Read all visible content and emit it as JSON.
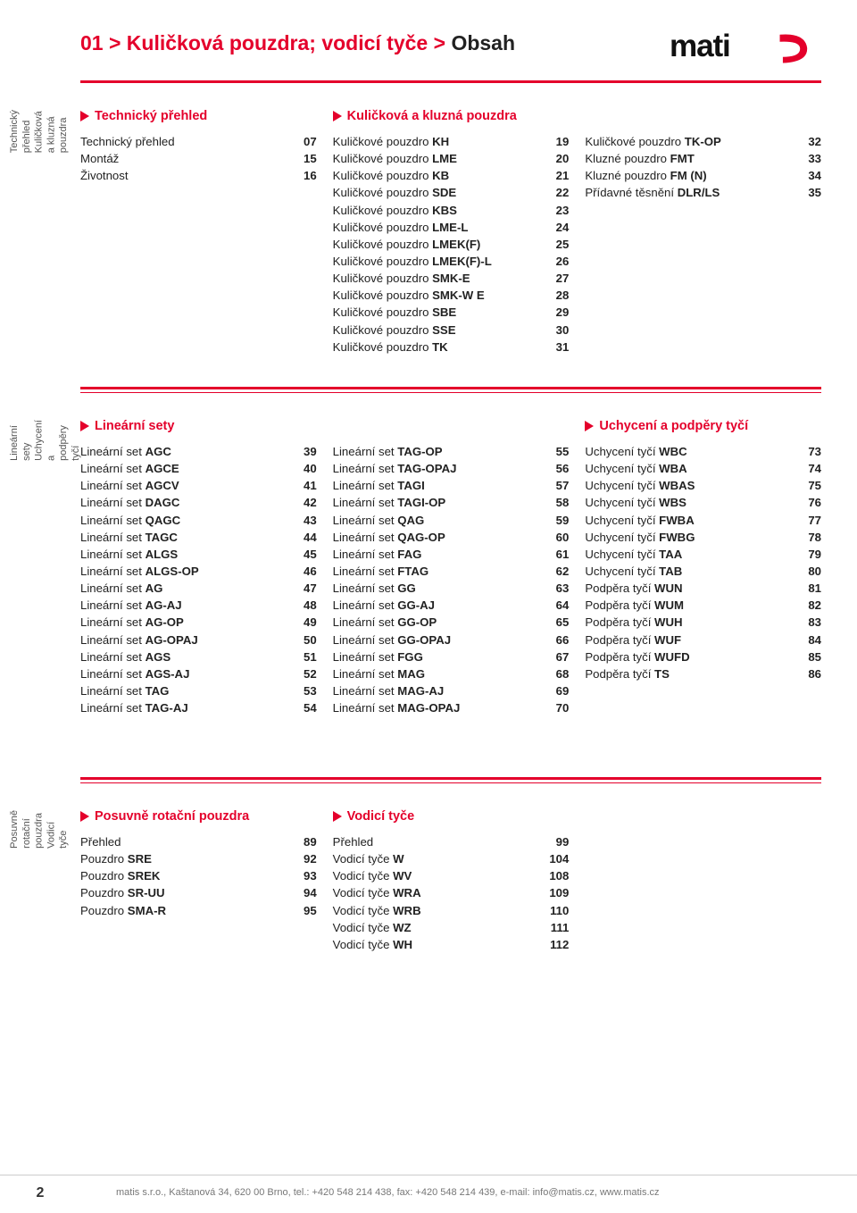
{
  "colors": {
    "accent": "#e4002b",
    "text": "#222222",
    "muted": "#777777",
    "rule": "#e4002b"
  },
  "breadcrumb": {
    "prefix": "01 > Kuličková pouzdra; vodicí tyče > ",
    "last": "Obsah"
  },
  "logo_text": "matis",
  "side_tabs": {
    "s1": {
      "line1": "Technický přehled",
      "line2": "Kuličková a kluzná pouzdra"
    },
    "s2": {
      "line1": "Lineární sety",
      "line2": "Uchycení a podpěry tyčí"
    },
    "s3": {
      "line1": "Posuvně rotační pouzdra",
      "line2": "Vodicí tyče"
    }
  },
  "section1": {
    "col1": {
      "heading": "Technický přehled",
      "items": [
        {
          "pre": "Technický přehled",
          "bold": "",
          "page": "07"
        },
        {
          "pre": "Montáž",
          "bold": "",
          "page": "15"
        },
        {
          "pre": "Životnost",
          "bold": "",
          "page": "16"
        }
      ]
    },
    "col2": {
      "heading": "Kuličková a kluzná pouzdra",
      "items": [
        {
          "pre": "Kuličkové pouzdro ",
          "bold": "KH",
          "page": "19"
        },
        {
          "pre": "Kuličkové pouzdro ",
          "bold": "LME",
          "page": "20"
        },
        {
          "pre": "Kuličkové pouzdro ",
          "bold": "KB",
          "page": "21"
        },
        {
          "pre": "Kuličkové pouzdro ",
          "bold": "SDE",
          "page": "22"
        },
        {
          "pre": "Kuličkové pouzdro ",
          "bold": "KBS",
          "page": "23"
        },
        {
          "pre": "Kuličkové pouzdro ",
          "bold": "LME-L",
          "page": "24"
        },
        {
          "pre": "Kuličkové pouzdro ",
          "bold": "LMEK(F)",
          "page": "25"
        },
        {
          "pre": "Kuličkové pouzdro ",
          "bold": "LMEK(F)-L",
          "page": "26"
        },
        {
          "pre": "Kuličkové pouzdro ",
          "bold": "SMK-E",
          "page": "27"
        },
        {
          "pre": "Kuličkové pouzdro ",
          "bold": "SMK-W E",
          "page": "28"
        },
        {
          "pre": "Kuličkové pouzdro ",
          "bold": "SBE",
          "page": "29"
        },
        {
          "pre": "Kuličkové pouzdro ",
          "bold": "SSE",
          "page": "30"
        },
        {
          "pre": "Kuličkové pouzdro ",
          "bold": "TK",
          "page": "31"
        }
      ]
    },
    "col3": {
      "items": [
        {
          "pre": "Kuličkové pouzdro ",
          "bold": "TK-OP",
          "page": "32"
        },
        {
          "pre": "Kluzné pouzdro ",
          "bold": "FMT",
          "page": "33"
        },
        {
          "pre": "Kluzné pouzdro ",
          "bold": "FM (N)",
          "page": "34"
        },
        {
          "pre": "Přídavné těsnění ",
          "bold": "DLR/LS",
          "page": "35"
        }
      ]
    }
  },
  "section2": {
    "col1": {
      "heading": "Lineární sety",
      "items": [
        {
          "pre": "Lineární set ",
          "bold": "AGC",
          "page": "39"
        },
        {
          "pre": "Lineární set ",
          "bold": "AGCE",
          "page": "40"
        },
        {
          "pre": "Lineární set ",
          "bold": "AGCV",
          "page": "41"
        },
        {
          "pre": "Lineární set ",
          "bold": "DAGC",
          "page": "42"
        },
        {
          "pre": "Lineární set ",
          "bold": "QAGC",
          "page": "43"
        },
        {
          "pre": "Lineární set ",
          "bold": "TAGC",
          "page": "44"
        },
        {
          "pre": "Lineární set ",
          "bold": "ALGS",
          "page": "45"
        },
        {
          "pre": "Lineární set ",
          "bold": "ALGS-OP",
          "page": "46"
        },
        {
          "pre": "Lineární set ",
          "bold": "AG",
          "page": "47"
        },
        {
          "pre": "Lineární set ",
          "bold": "AG-AJ",
          "page": "48"
        },
        {
          "pre": "Lineární set ",
          "bold": "AG-OP",
          "page": "49"
        },
        {
          "pre": "Lineární set ",
          "bold": "AG-OPAJ",
          "page": "50"
        },
        {
          "pre": "Lineární set ",
          "bold": "AGS",
          "page": "51"
        },
        {
          "pre": "Lineární set ",
          "bold": "AGS-AJ",
          "page": "52"
        },
        {
          "pre": "Lineární set ",
          "bold": "TAG",
          "page": "53"
        },
        {
          "pre": "Lineární set ",
          "bold": "TAG-AJ",
          "page": "54"
        }
      ]
    },
    "col2": {
      "items": [
        {
          "pre": "Lineární set ",
          "bold": "TAG-OP",
          "page": "55"
        },
        {
          "pre": "Lineární set ",
          "bold": "TAG-OPAJ",
          "page": "56"
        },
        {
          "pre": "Lineární set ",
          "bold": "TAGI",
          "page": "57"
        },
        {
          "pre": "Lineární set ",
          "bold": "TAGI-OP",
          "page": "58"
        },
        {
          "pre": "Lineární set ",
          "bold": "QAG",
          "page": "59"
        },
        {
          "pre": "Lineární set ",
          "bold": "QAG-OP",
          "page": "60"
        },
        {
          "pre": "Lineární set ",
          "bold": "FAG",
          "page": "61"
        },
        {
          "pre": "Lineární set ",
          "bold": "FTAG",
          "page": "62"
        },
        {
          "pre": "Lineární set ",
          "bold": "GG",
          "page": "63"
        },
        {
          "pre": "Lineární set ",
          "bold": "GG-AJ",
          "page": "64"
        },
        {
          "pre": "Lineární set ",
          "bold": "GG-OP",
          "page": "65"
        },
        {
          "pre": "Lineární set ",
          "bold": "GG-OPAJ",
          "page": "66"
        },
        {
          "pre": "Lineární set ",
          "bold": "FGG",
          "page": "67"
        },
        {
          "pre": "Lineární set ",
          "bold": "MAG",
          "page": "68"
        },
        {
          "pre": "Lineární set ",
          "bold": "MAG-AJ",
          "page": "69"
        },
        {
          "pre": "Lineární set ",
          "bold": "MAG-OPAJ",
          "page": "70"
        }
      ]
    },
    "col3": {
      "heading": "Uchycení a podpěry tyčí",
      "items": [
        {
          "pre": "Uchycení tyčí ",
          "bold": "WBC",
          "page": "73"
        },
        {
          "pre": "Uchycení tyčí ",
          "bold": "WBA",
          "page": "74"
        },
        {
          "pre": "Uchycení tyčí ",
          "bold": "WBAS",
          "page": "75"
        },
        {
          "pre": "Uchycení tyčí ",
          "bold": "WBS",
          "page": "76"
        },
        {
          "pre": "Uchycení tyčí ",
          "bold": "FWBA",
          "page": "77"
        },
        {
          "pre": "Uchycení tyčí ",
          "bold": "FWBG",
          "page": "78"
        },
        {
          "pre": "Uchycení tyčí ",
          "bold": "TAA",
          "page": "79"
        },
        {
          "pre": "Uchycení tyčí ",
          "bold": "TAB",
          "page": "80"
        },
        {
          "pre": "Podpěra tyčí ",
          "bold": "WUN",
          "page": "81"
        },
        {
          "pre": "Podpěra tyčí ",
          "bold": "WUM",
          "page": "82"
        },
        {
          "pre": "Podpěra tyčí ",
          "bold": "WUH",
          "page": "83"
        },
        {
          "pre": "Podpěra tyčí ",
          "bold": "WUF",
          "page": "84"
        },
        {
          "pre": "Podpěra tyčí ",
          "bold": "WUFD",
          "page": "85"
        },
        {
          "pre": "Podpěra tyčí ",
          "bold": "TS",
          "page": "86"
        }
      ]
    }
  },
  "section3": {
    "col1": {
      "heading": "Posuvně rotační pouzdra",
      "items": [
        {
          "pre": "Přehled",
          "bold": "",
          "page": "89"
        },
        {
          "pre": "Pouzdro ",
          "bold": "SRE",
          "page": "92"
        },
        {
          "pre": "Pouzdro ",
          "bold": "SREK",
          "page": "93"
        },
        {
          "pre": "Pouzdro ",
          "bold": "SR-UU",
          "page": "94"
        },
        {
          "pre": "Pouzdro ",
          "bold": "SMA-R",
          "page": "95"
        }
      ]
    },
    "col2": {
      "heading": "Vodicí tyče",
      "items": [
        {
          "pre": "Přehled",
          "bold": "",
          "page": "99"
        },
        {
          "pre": "Vodicí tyče ",
          "bold": "W",
          "page": "104"
        },
        {
          "pre": "Vodicí tyče ",
          "bold": "WV",
          "page": "108"
        },
        {
          "pre": "Vodicí tyče ",
          "bold": "WRA",
          "page": "109"
        },
        {
          "pre": "Vodicí tyče ",
          "bold": "WRB",
          "page": "110"
        },
        {
          "pre": "Vodicí tyče ",
          "bold": "WZ",
          "page": "111"
        },
        {
          "pre": "Vodicí tyče ",
          "bold": "WH",
          "page": "112"
        }
      ]
    },
    "col3": {
      "items": []
    }
  },
  "footer": {
    "page_number": "2",
    "text": "matis s.r.o., Kaštanová 34, 620 00 Brno, tel.: +420 548 214 438, fax: +420 548 214 439, e-mail: info@matis.cz, www.matis.cz"
  }
}
